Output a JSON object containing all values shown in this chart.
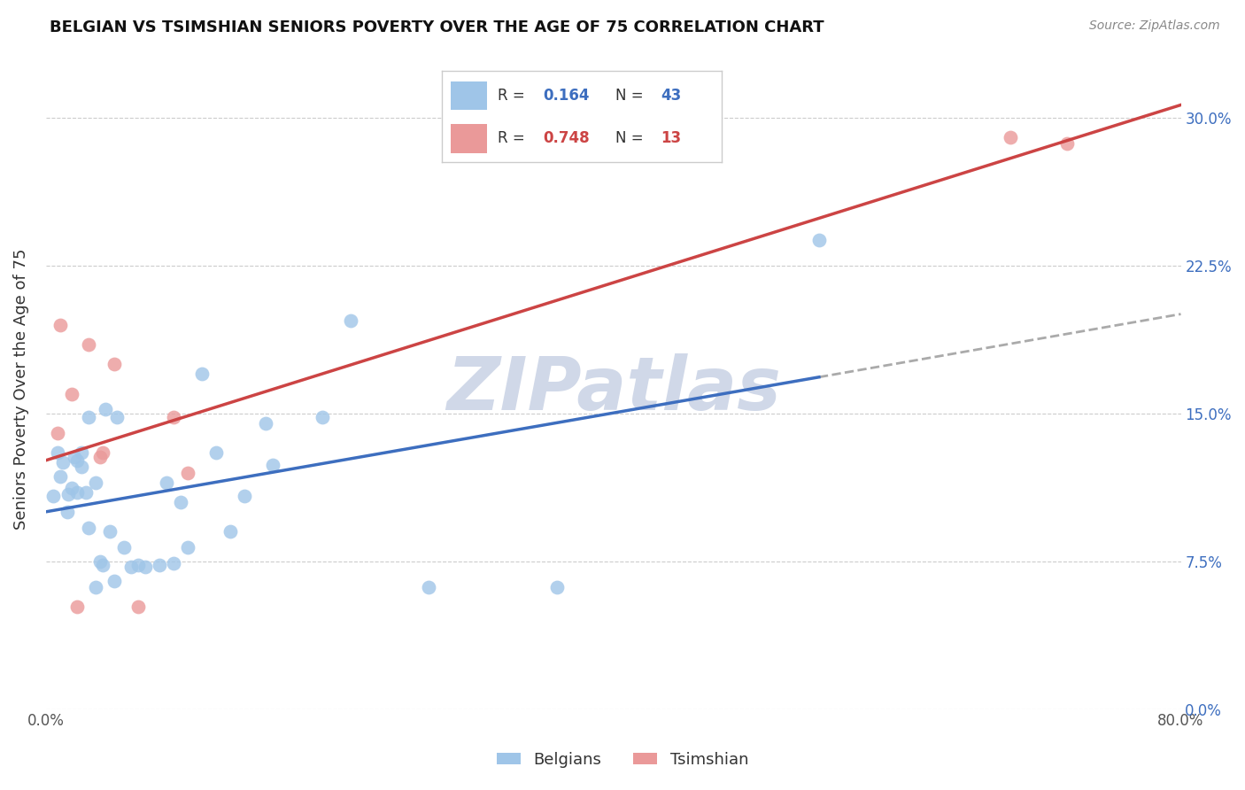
{
  "title": "BELGIAN VS TSIMSHIAN SENIORS POVERTY OVER THE AGE OF 75 CORRELATION CHART",
  "source": "Source: ZipAtlas.com",
  "ylabel": "Seniors Poverty Over the Age of 75",
  "xlim": [
    0.0,
    0.8
  ],
  "ylim": [
    0.0,
    0.325
  ],
  "yticks": [
    0.0,
    0.075,
    0.15,
    0.225,
    0.3
  ],
  "ytick_labels": [
    "0.0%",
    "7.5%",
    "15.0%",
    "22.5%",
    "30.0%"
  ],
  "xtick_positions": [
    0.0,
    0.8
  ],
  "xtick_labels": [
    "0.0%",
    "80.0%"
  ],
  "belgian_scatter_color": "#9fc5e8",
  "tsimshian_scatter_color": "#ea9999",
  "belgian_line_color": "#3d6ebf",
  "tsimshian_line_color": "#cc4444",
  "dashed_line_color": "#aaaaaa",
  "r_belgian": 0.164,
  "n_belgian": 43,
  "r_tsimshian": 0.748,
  "n_tsimshian": 13,
  "belgians_x": [
    0.005,
    0.008,
    0.01,
    0.012,
    0.015,
    0.016,
    0.018,
    0.02,
    0.022,
    0.022,
    0.025,
    0.025,
    0.028,
    0.03,
    0.03,
    0.035,
    0.035,
    0.038,
    0.04,
    0.042,
    0.045,
    0.048,
    0.05,
    0.055,
    0.06,
    0.065,
    0.07,
    0.08,
    0.085,
    0.09,
    0.095,
    0.1,
    0.11,
    0.12,
    0.13,
    0.14,
    0.155,
    0.16,
    0.195,
    0.215,
    0.27,
    0.36,
    0.545
  ],
  "belgians_y": [
    0.108,
    0.13,
    0.118,
    0.125,
    0.1,
    0.109,
    0.112,
    0.128,
    0.126,
    0.11,
    0.123,
    0.13,
    0.11,
    0.092,
    0.148,
    0.062,
    0.115,
    0.075,
    0.073,
    0.152,
    0.09,
    0.065,
    0.148,
    0.082,
    0.072,
    0.073,
    0.072,
    0.073,
    0.115,
    0.074,
    0.105,
    0.082,
    0.17,
    0.13,
    0.09,
    0.108,
    0.145,
    0.124,
    0.148,
    0.197,
    0.062,
    0.062,
    0.238
  ],
  "tsimshian_x": [
    0.008,
    0.01,
    0.018,
    0.022,
    0.03,
    0.038,
    0.04,
    0.048,
    0.065,
    0.09,
    0.1,
    0.68,
    0.72
  ],
  "tsimshian_y": [
    0.14,
    0.195,
    0.16,
    0.052,
    0.185,
    0.128,
    0.13,
    0.175,
    0.052,
    0.148,
    0.12,
    0.29,
    0.287
  ],
  "watermark": "ZIPatlas",
  "watermark_color": "#d0d8e8",
  "background_color": "#ffffff",
  "grid_color": "#cccccc"
}
